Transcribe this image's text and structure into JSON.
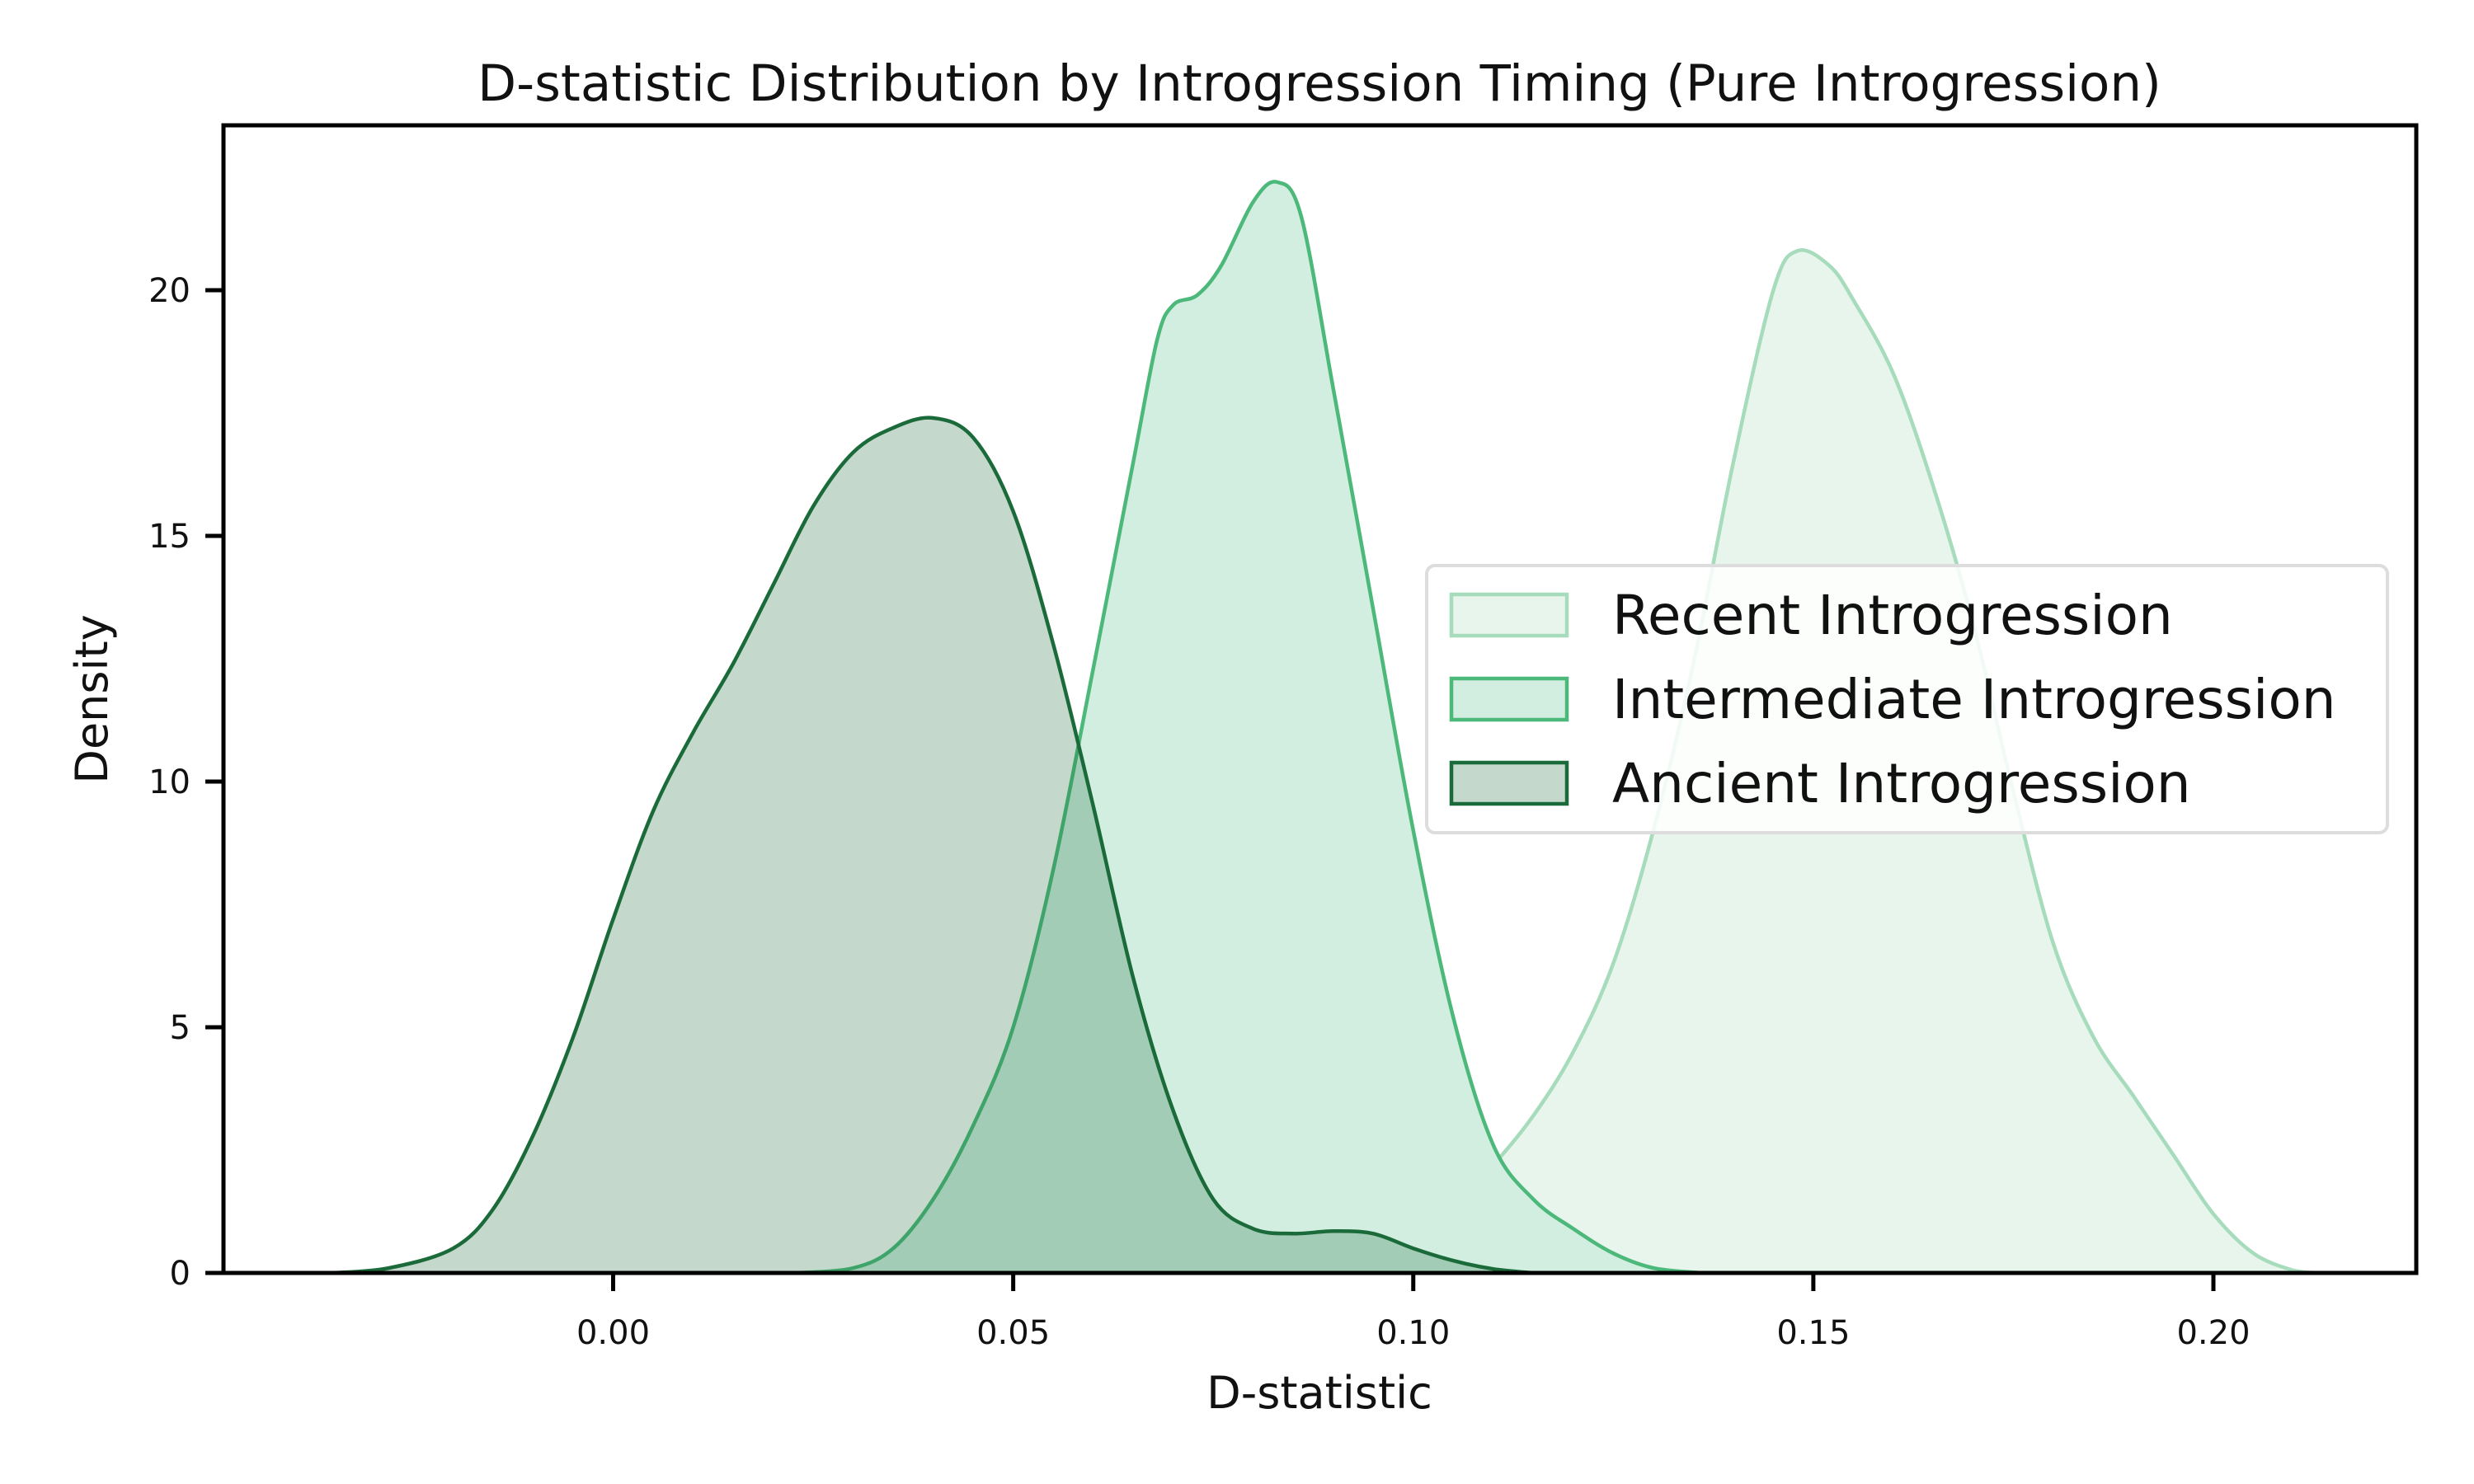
{
  "chart_data": {
    "type": "area",
    "title": "D-statistic Distribution by Introgression Timing (Pure Introgression)",
    "xlabel": "D-statistic",
    "ylabel": "Density",
    "xlim": [
      -0.048,
      0.226
    ],
    "ylim": [
      0,
      23.3
    ],
    "xticks": [
      0.0,
      0.05,
      0.1,
      0.15,
      0.2
    ],
    "xtick_labels": [
      "0.00",
      "0.05",
      "0.10",
      "0.15",
      "0.20"
    ],
    "yticks": [
      0,
      5,
      10,
      15,
      20
    ],
    "ytick_labels": [
      "0",
      "5",
      "10",
      "15",
      "20"
    ],
    "grid": false,
    "legend_position": "center-right",
    "series": [
      {
        "name": "Recent Introgression",
        "line_color": "#a6dcbb",
        "fill_color": "#e8f5ec",
        "fill_opacity": 1,
        "points": [
          [
            0.085,
            0
          ],
          [
            0.092,
            0.2
          ],
          [
            0.1,
            0.8
          ],
          [
            0.105,
            1.4
          ],
          [
            0.11,
            2.2
          ],
          [
            0.115,
            3.2
          ],
          [
            0.12,
            4.5
          ],
          [
            0.125,
            6.3
          ],
          [
            0.13,
            9.0
          ],
          [
            0.135,
            12.4
          ],
          [
            0.14,
            16.5
          ],
          [
            0.145,
            20.0
          ],
          [
            0.148,
            20.8
          ],
          [
            0.152,
            20.5
          ],
          [
            0.155,
            19.8
          ],
          [
            0.16,
            18.3
          ],
          [
            0.165,
            16.0
          ],
          [
            0.17,
            13.2
          ],
          [
            0.175,
            9.8
          ],
          [
            0.18,
            6.7
          ],
          [
            0.185,
            4.8
          ],
          [
            0.19,
            3.6
          ],
          [
            0.195,
            2.4
          ],
          [
            0.2,
            1.2
          ],
          [
            0.205,
            0.4
          ],
          [
            0.21,
            0.05
          ],
          [
            0.213,
            0
          ]
        ]
      },
      {
        "name": "Intermediate Introgression",
        "line_color": "#4cb87a",
        "fill_color": "#d2eee0",
        "fill_opacity": 1,
        "points": [
          [
            0.023,
            0
          ],
          [
            0.03,
            0.1
          ],
          [
            0.035,
            0.5
          ],
          [
            0.04,
            1.5
          ],
          [
            0.045,
            3.0
          ],
          [
            0.05,
            5.0
          ],
          [
            0.055,
            8.2
          ],
          [
            0.06,
            12.3
          ],
          [
            0.065,
            16.5
          ],
          [
            0.068,
            19.0
          ],
          [
            0.07,
            19.7
          ],
          [
            0.073,
            19.9
          ],
          [
            0.076,
            20.5
          ],
          [
            0.08,
            21.8
          ],
          [
            0.083,
            22.2
          ],
          [
            0.086,
            21.5
          ],
          [
            0.09,
            18.0
          ],
          [
            0.095,
            13.5
          ],
          [
            0.1,
            9.0
          ],
          [
            0.105,
            5.2
          ],
          [
            0.11,
            2.6
          ],
          [
            0.115,
            1.5
          ],
          [
            0.12,
            0.9
          ],
          [
            0.125,
            0.4
          ],
          [
            0.13,
            0.1
          ],
          [
            0.136,
            0
          ]
        ]
      },
      {
        "name": "Ancient Introgression",
        "line_color": "#1b6b3a",
        "fill_color": "#1b6b3a",
        "fill_opacity": 0.26,
        "points": [
          [
            -0.035,
            0
          ],
          [
            -0.028,
            0.1
          ],
          [
            -0.02,
            0.5
          ],
          [
            -0.015,
            1.3
          ],
          [
            -0.01,
            2.8
          ],
          [
            -0.005,
            4.8
          ],
          [
            0.0,
            7.2
          ],
          [
            0.005,
            9.4
          ],
          [
            0.01,
            11.0
          ],
          [
            0.015,
            12.4
          ],
          [
            0.02,
            14.0
          ],
          [
            0.025,
            15.6
          ],
          [
            0.03,
            16.7
          ],
          [
            0.035,
            17.2
          ],
          [
            0.04,
            17.4
          ],
          [
            0.045,
            17.0
          ],
          [
            0.05,
            15.5
          ],
          [
            0.055,
            12.8
          ],
          [
            0.06,
            9.5
          ],
          [
            0.065,
            6.0
          ],
          [
            0.07,
            3.3
          ],
          [
            0.075,
            1.5
          ],
          [
            0.08,
            0.9
          ],
          [
            0.085,
            0.8
          ],
          [
            0.09,
            0.85
          ],
          [
            0.095,
            0.8
          ],
          [
            0.1,
            0.5
          ],
          [
            0.105,
            0.25
          ],
          [
            0.11,
            0.08
          ],
          [
            0.115,
            0
          ]
        ]
      }
    ]
  }
}
